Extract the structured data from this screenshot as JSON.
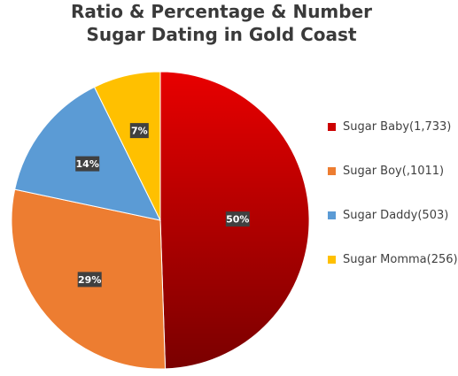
{
  "chart_data": {
    "type": "pie",
    "title_lines": [
      "Ratio & Percentage & Number",
      "Sugar Dating in Gold Coast"
    ],
    "slices": [
      {
        "name": "Sugar Baby(1,733)",
        "value": 1733,
        "label": "50%",
        "color": "#cc0000"
      },
      {
        "name": "Sugar Boy(,1011)",
        "value": 1011,
        "label": "29%",
        "color": "#ed7d31"
      },
      {
        "name": "Sugar Daddy(503)",
        "value": 503,
        "label": "14%",
        "color": "#5b9bd5"
      },
      {
        "name": "Sugar Momma(256)",
        "value": 256,
        "label": "7%",
        "color": "#ffc000"
      }
    ],
    "legend_position": "right"
  }
}
